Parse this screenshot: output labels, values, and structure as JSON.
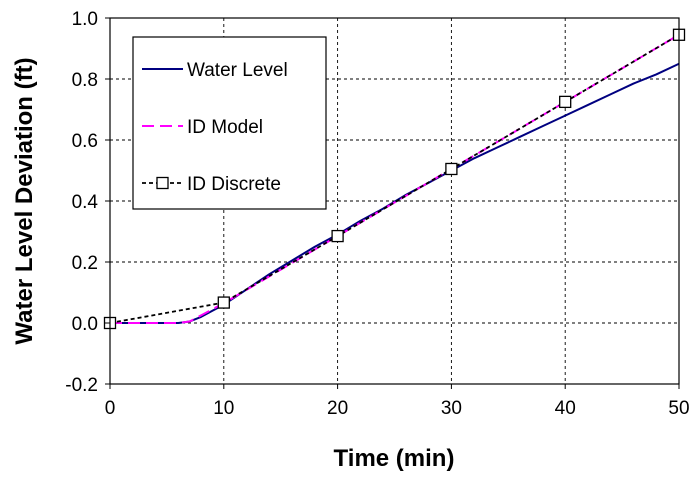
{
  "chart_data": {
    "type": "line",
    "title": "",
    "xlabel": "Time (min)",
    "ylabel": "Water Level Deviation (ft)",
    "xlim": [
      0,
      50
    ],
    "ylim": [
      -0.2,
      1.0
    ],
    "x_ticks": [
      0,
      10,
      20,
      30,
      40,
      50
    ],
    "y_ticks": [
      -0.2,
      0.0,
      0.2,
      0.4,
      0.6,
      0.8,
      1.0
    ],
    "x_tick_labels": [
      "0",
      "10",
      "20",
      "30",
      "40",
      "50"
    ],
    "y_tick_labels": [
      "-0.2",
      "0.0",
      "0.2",
      "0.4",
      "0.6",
      "0.8",
      "1.0"
    ],
    "grid": true,
    "legend_position": "top-left",
    "series": [
      {
        "name": "Water Level",
        "color": "#000080",
        "style": "solid",
        "marker": "none",
        "x": [
          0,
          2,
          4,
          6,
          7,
          8,
          9,
          10,
          12,
          14,
          16,
          18,
          20,
          22,
          24,
          26,
          28,
          30,
          32,
          34,
          36,
          38,
          40,
          42,
          44,
          46,
          48,
          50
        ],
        "y": [
          0.0,
          0.0,
          0.0,
          0.0,
          0.005,
          0.02,
          0.04,
          0.06,
          0.11,
          0.16,
          0.205,
          0.25,
          0.29,
          0.335,
          0.375,
          0.42,
          0.46,
          0.5,
          0.54,
          0.575,
          0.61,
          0.645,
          0.68,
          0.715,
          0.75,
          0.785,
          0.815,
          0.85
        ]
      },
      {
        "name": "ID Model",
        "color": "#ff00ff",
        "style": "dashed",
        "marker": "none",
        "x": [
          0,
          2,
          4,
          6,
          7,
          8,
          9,
          10,
          15,
          20,
          25,
          30,
          35,
          40,
          45,
          50
        ],
        "y": [
          0.0,
          0.0,
          0.0,
          0.0,
          0.005,
          0.025,
          0.045,
          0.065,
          0.175,
          0.285,
          0.395,
          0.505,
          0.615,
          0.725,
          0.835,
          0.945
        ]
      },
      {
        "name": "ID Discrete",
        "color": "#000000",
        "style": "dotted",
        "marker": "square",
        "x": [
          0,
          10,
          20,
          30,
          40,
          50
        ],
        "y": [
          0.0,
          0.067,
          0.285,
          0.505,
          0.725,
          0.945
        ]
      }
    ]
  }
}
